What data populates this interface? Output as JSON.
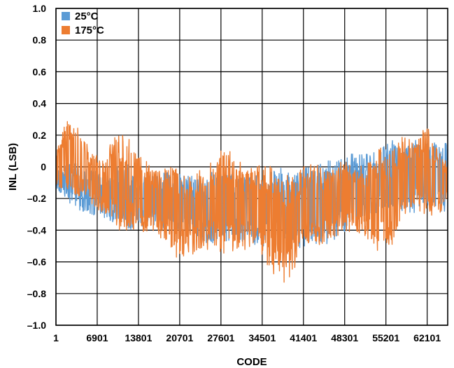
{
  "chart_data": {
    "type": "line",
    "title": "",
    "xlabel": "CODE",
    "ylabel": "INL (LSB)",
    "xlim": [
      1,
      65536
    ],
    "ylim": [
      -1.0,
      1.0
    ],
    "x_ticks": [
      1,
      6901,
      13801,
      20701,
      27601,
      34501,
      41401,
      48301,
      55201,
      62101
    ],
    "x_tick_labels": [
      "1",
      "6901",
      "13801",
      "20701",
      "27601",
      "34501",
      "41401",
      "48301",
      "55201",
      "62101"
    ],
    "y_ticks": [
      1.0,
      0.8,
      0.6,
      0.4,
      0.2,
      0,
      -0.2,
      -0.4,
      -0.6,
      -0.8,
      -1.0
    ],
    "y_tick_labels": [
      "1.0",
      "0.8",
      "0.6",
      "0.4",
      "0.2",
      "0",
      "–0.2",
      "–0.4",
      "–0.6",
      "–0.8",
      "–1.0"
    ],
    "grid": true,
    "legend_position": "top-left",
    "series": [
      {
        "name": "25°C",
        "color": "#5B9BD5",
        "envelope_codes": [
          1,
          2000,
          4000,
          6000,
          8000,
          10000,
          12000,
          14000,
          16000,
          18000,
          20000,
          22000,
          24000,
          26000,
          28000,
          30000,
          32000,
          34000,
          36000,
          38000,
          40000,
          42000,
          44000,
          46000,
          48000,
          50000,
          52000,
          54000,
          56000,
          58000,
          60000,
          62000,
          64000,
          65535
        ],
        "upper": [
          0.0,
          0.03,
          0.02,
          -0.02,
          -0.04,
          0.0,
          0.02,
          -0.05,
          -0.06,
          -0.02,
          -0.05,
          -0.03,
          -0.05,
          -0.03,
          -0.02,
          -0.05,
          -0.05,
          -0.03,
          -0.03,
          0.0,
          -0.04,
          0.02,
          0.02,
          0.05,
          0.07,
          0.09,
          0.08,
          0.1,
          0.18,
          0.12,
          0.19,
          0.18,
          0.16,
          0.15
        ],
        "lower": [
          -0.15,
          -0.22,
          -0.28,
          -0.3,
          -0.33,
          -0.36,
          -0.4,
          -0.38,
          -0.36,
          -0.4,
          -0.44,
          -0.4,
          -0.46,
          -0.5,
          -0.48,
          -0.46,
          -0.48,
          -0.5,
          -0.52,
          -0.48,
          -0.52,
          -0.5,
          -0.5,
          -0.48,
          -0.42,
          -0.38,
          -0.32,
          -0.3,
          -0.26,
          -0.28,
          -0.3,
          -0.25,
          -0.3,
          -0.28
        ]
      },
      {
        "name": "175°C",
        "color": "#ED7D31",
        "envelope_codes": [
          1,
          2000,
          4000,
          6000,
          8000,
          10000,
          12000,
          14000,
          16000,
          18000,
          20000,
          22000,
          24000,
          26000,
          28000,
          30000,
          32000,
          34000,
          36000,
          38000,
          40000,
          42000,
          44000,
          46000,
          48000,
          50000,
          52000,
          54000,
          56000,
          58000,
          60000,
          62000,
          64000,
          65535
        ],
        "upper": [
          0.15,
          0.3,
          0.24,
          0.1,
          0.06,
          0.22,
          0.2,
          0.08,
          0.02,
          0.0,
          0.0,
          -0.05,
          -0.02,
          0.05,
          0.12,
          0.08,
          -0.02,
          0.04,
          0.0,
          -0.06,
          -0.04,
          0.02,
          0.02,
          -0.02,
          0.04,
          0.02,
          0.02,
          0.14,
          0.08,
          0.2,
          0.18,
          0.27,
          0.1,
          0.04
        ],
        "lower": [
          -0.12,
          -0.16,
          -0.2,
          -0.24,
          -0.3,
          -0.4,
          -0.4,
          -0.42,
          -0.44,
          -0.46,
          -0.58,
          -0.56,
          -0.54,
          -0.52,
          -0.55,
          -0.58,
          -0.52,
          -0.54,
          -0.66,
          -0.74,
          -0.68,
          -0.48,
          -0.5,
          -0.46,
          -0.42,
          -0.4,
          -0.45,
          -0.55,
          -0.56,
          -0.3,
          -0.28,
          -0.32,
          -0.3,
          -0.25
        ]
      }
    ]
  }
}
